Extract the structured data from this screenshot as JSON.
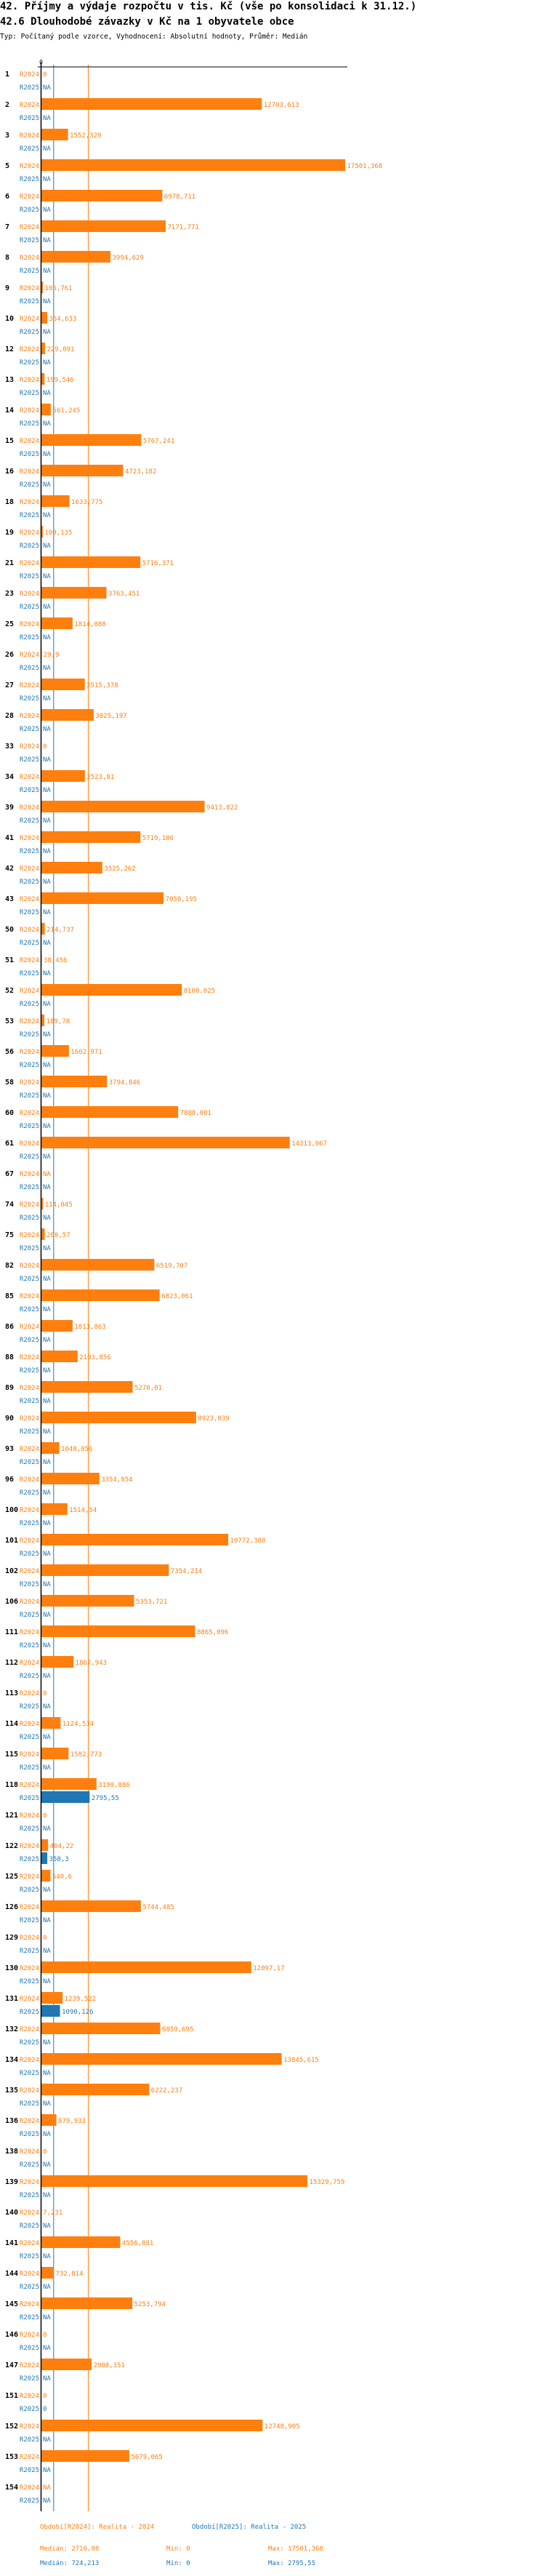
{
  "header": {
    "title": "42. Příjmy a výdaje rozpočtu v tis. Kč (vše po konsolidaci k 31.12.)",
    "subtitle": "42.6 Dlouhodobé závazky v Kč na 1 obyvatele obce",
    "meta": "Typ: Počítaný podle vzorce, Vyhodnocení: Absolutní hodnoty, Průměr: Medián"
  },
  "colors": {
    "r2024": "#ff7f0e",
    "r2025": "#1f77b4",
    "axis": "#000000"
  },
  "chart_data": {
    "type": "bar",
    "orientation": "horizontal",
    "xaxis_tick_labels": [
      "0"
    ],
    "series_labels": [
      "R2024",
      "R2025"
    ],
    "categories": [
      "1",
      "2",
      "3",
      "5",
      "6",
      "7",
      "8",
      "9",
      "10",
      "12",
      "13",
      "14",
      "15",
      "16",
      "18",
      "19",
      "21",
      "23",
      "25",
      "26",
      "27",
      "28",
      "33",
      "34",
      "39",
      "41",
      "42",
      "43",
      "50",
      "51",
      "52",
      "53",
      "56",
      "58",
      "60",
      "61",
      "67",
      "74",
      "75",
      "82",
      "85",
      "86",
      "88",
      "89",
      "90",
      "93",
      "96",
      "100",
      "101",
      "102",
      "106",
      "111",
      "112",
      "113",
      "114",
      "115",
      "118",
      "121",
      "122",
      "125",
      "126",
      "129",
      "130",
      "131",
      "132",
      "134",
      "135",
      "136",
      "138",
      "139",
      "140",
      "141",
      "144",
      "145",
      "146",
      "147",
      "151",
      "152",
      "153",
      "154"
    ],
    "series": [
      {
        "name": "R2024",
        "values": [
          0,
          12703.613,
          1552.329,
          17501.368,
          6978.711,
          7171.771,
          3994.629,
          106.761,
          354.633,
          229.091,
          199.546,
          561.245,
          5767.241,
          4723.182,
          1633.775,
          100.135,
          5716.371,
          3763.451,
          1814.088,
          29.9,
          2515.378,
          3025.197,
          0,
          2523.81,
          9413.822,
          5719.186,
          3525.262,
          7050.195,
          214.737,
          38.456,
          8100.025,
          189.78,
          1602.971,
          3794.846,
          7888.001,
          14313.067,
          null,
          114.045,
          208.57,
          6519.707,
          6823.061,
          1813.863,
          2103.856,
          5270.01,
          8923.039,
          1048.056,
          3354.854,
          1514.54,
          10772.388,
          7354.214,
          5353.721,
          8865.096,
          1867.943,
          0,
          1124.534,
          1582.773,
          3190.886,
          0,
          404.22,
          540.6,
          5744.485,
          0,
          12097.17,
          1239.522,
          6859.695,
          13845.615,
          6222.237,
          879.933,
          0,
          15329.759,
          7.231,
          4556.881,
          732.814,
          5253.794,
          0,
          2908.351,
          0,
          12748.905,
          5079.065,
          null
        ]
      },
      {
        "name": "R2025",
        "values": [
          null,
          null,
          null,
          null,
          null,
          null,
          null,
          null,
          null,
          null,
          null,
          null,
          null,
          null,
          null,
          null,
          null,
          null,
          null,
          null,
          null,
          null,
          null,
          null,
          null,
          null,
          null,
          null,
          null,
          null,
          null,
          null,
          null,
          null,
          null,
          null,
          null,
          null,
          null,
          null,
          null,
          null,
          null,
          null,
          null,
          null,
          null,
          null,
          null,
          null,
          null,
          null,
          null,
          null,
          null,
          null,
          2795.55,
          null,
          358.3,
          null,
          null,
          null,
          null,
          1090.126,
          null,
          null,
          null,
          null,
          null,
          null,
          null,
          null,
          null,
          null,
          null,
          null,
          0,
          null,
          null,
          null
        ]
      }
    ],
    "na_label": "NA",
    "medians": {
      "R2024": 2716.08,
      "R2025": 724.213
    },
    "xlim": [
      0,
      17501.368
    ],
    "legend": {
      "r2024": "Období[R2024]: Realita - 2024",
      "r2025": "Období[R2025]: Realita - 2025"
    },
    "stats": {
      "r2024": {
        "median": "Medián: 2716,08",
        "min": "Min: 0",
        "max": "Max: 17501,368"
      },
      "r2025": {
        "median": "Medián: 724,213",
        "min": "Min: 0",
        "max": "Max: 2795,55"
      }
    }
  }
}
